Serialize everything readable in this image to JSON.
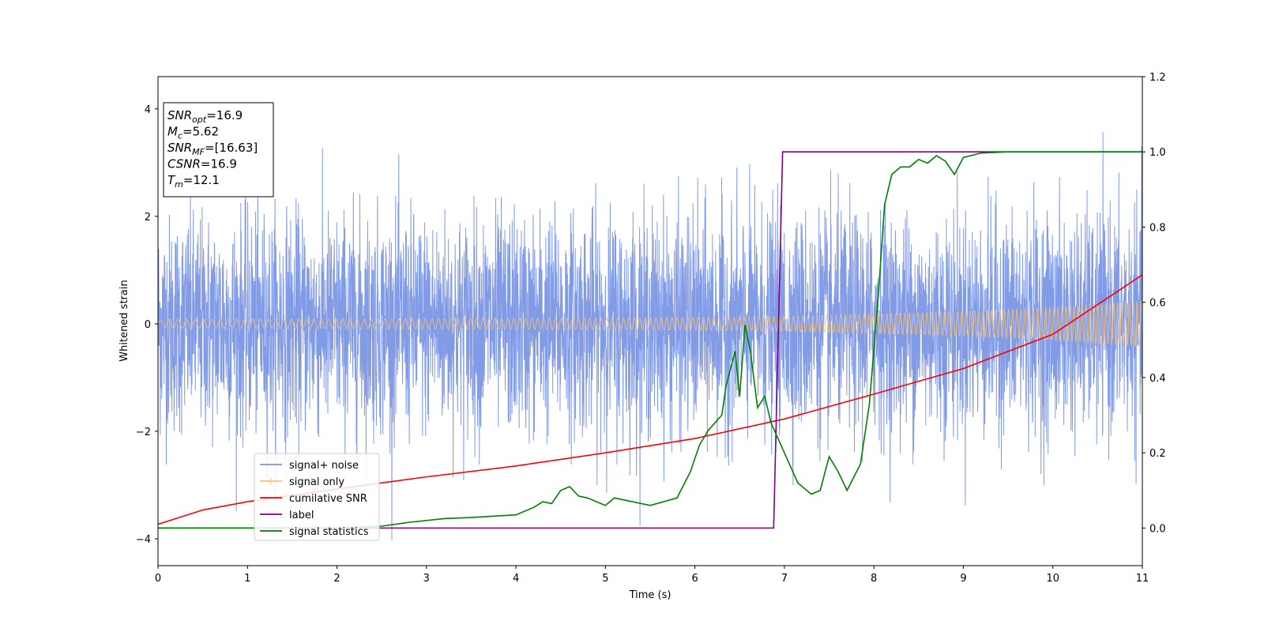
{
  "chart_data": {
    "type": "line",
    "xlabel": "Time (s)",
    "ylabel_left": "Whitened strain",
    "ylabel_right": "",
    "xlim": [
      0,
      11
    ],
    "ylim_left": [
      -4.5,
      4.6
    ],
    "ylim_right": [
      -0.1,
      1.2
    ],
    "xticks": [
      "0",
      "1",
      "2",
      "3",
      "4",
      "5",
      "6",
      "7",
      "8",
      "9",
      "10",
      "11"
    ],
    "yticks_left": [
      "−4",
      "−2",
      "0",
      "2",
      "4"
    ],
    "yticks_right": [
      "0.0",
      "0.2",
      "0.4",
      "0.6",
      "0.8",
      "1.0",
      "1.2"
    ],
    "grid": false,
    "legend_position": "lower-left",
    "info_box": {
      "lines": [
        {
          "main": "SNR",
          "sub": "opt",
          "rest": "=16.9"
        },
        {
          "main": "M",
          "sub": "c",
          "rest": "=5.62"
        },
        {
          "main": "SNR",
          "sub": "MF",
          "rest": "=[16.63]"
        },
        {
          "main": "CSNR",
          "sub": "",
          "rest": "=16.9"
        },
        {
          "main": "T",
          "sub": "m",
          "rest": "=12.1"
        }
      ]
    },
    "series": [
      {
        "name": "signal+ noise",
        "axis": "left",
        "color": "#7b96e6",
        "description": "whitened noisy strain, roughly within ±2.5 with spikes to ±4",
        "envelope": {
          "sigma": 1.0,
          "x_range": [
            0,
            11
          ]
        }
      },
      {
        "name": "signal only",
        "axis": "left",
        "color": "#f2c27a",
        "amplitude_points": [
          [
            0,
            0.08
          ],
          [
            2,
            0.09
          ],
          [
            4,
            0.1
          ],
          [
            6,
            0.12
          ],
          [
            7,
            0.14
          ],
          [
            8,
            0.18
          ],
          [
            9,
            0.23
          ],
          [
            10,
            0.3
          ],
          [
            11,
            0.42
          ]
        ]
      },
      {
        "name": "cumilative SNR",
        "axis": "right",
        "color": "#ff0000",
        "points": [
          [
            0,
            0.01
          ],
          [
            0.5,
            0.048
          ],
          [
            1,
            0.07
          ],
          [
            2,
            0.104
          ],
          [
            3,
            0.136
          ],
          [
            4,
            0.165
          ],
          [
            5,
            0.2
          ],
          [
            6,
            0.238
          ],
          [
            7,
            0.29
          ],
          [
            8,
            0.356
          ],
          [
            9,
            0.424
          ],
          [
            10,
            0.515
          ],
          [
            11,
            0.673
          ]
        ]
      },
      {
        "name": "label",
        "axis": "right",
        "color": "#800080",
        "points": [
          [
            0,
            0.0
          ],
          [
            6.88,
            0.0
          ],
          [
            6.98,
            1.0
          ],
          [
            11,
            1.0
          ]
        ]
      },
      {
        "name": "signal statistics",
        "axis": "right",
        "color": "#008000",
        "points": [
          [
            0,
            0.0
          ],
          [
            1,
            0.0
          ],
          [
            2,
            0.0
          ],
          [
            2.5,
            0.005
          ],
          [
            2.8,
            0.015
          ],
          [
            3.2,
            0.025
          ],
          [
            3.5,
            0.028
          ],
          [
            4.0,
            0.035
          ],
          [
            4.2,
            0.055
          ],
          [
            4.3,
            0.07
          ],
          [
            4.4,
            0.065
          ],
          [
            4.5,
            0.1
          ],
          [
            4.6,
            0.11
          ],
          [
            4.7,
            0.085
          ],
          [
            4.8,
            0.08
          ],
          [
            5.0,
            0.06
          ],
          [
            5.1,
            0.08
          ],
          [
            5.2,
            0.075
          ],
          [
            5.5,
            0.06
          ],
          [
            5.8,
            0.08
          ],
          [
            5.95,
            0.15
          ],
          [
            6.05,
            0.22
          ],
          [
            6.15,
            0.26
          ],
          [
            6.3,
            0.3
          ],
          [
            6.35,
            0.38
          ],
          [
            6.45,
            0.47
          ],
          [
            6.5,
            0.35
          ],
          [
            6.56,
            0.54
          ],
          [
            6.62,
            0.47
          ],
          [
            6.7,
            0.32
          ],
          [
            6.78,
            0.35
          ],
          [
            6.85,
            0.28
          ],
          [
            7.0,
            0.2
          ],
          [
            7.15,
            0.12
          ],
          [
            7.3,
            0.09
          ],
          [
            7.4,
            0.1
          ],
          [
            7.5,
            0.19
          ],
          [
            7.6,
            0.15
          ],
          [
            7.7,
            0.1
          ],
          [
            7.85,
            0.17
          ],
          [
            7.95,
            0.33
          ],
          [
            8.05,
            0.62
          ],
          [
            8.12,
            0.86
          ],
          [
            8.2,
            0.94
          ],
          [
            8.3,
            0.96
          ],
          [
            8.4,
            0.96
          ],
          [
            8.5,
            0.98
          ],
          [
            8.6,
            0.97
          ],
          [
            8.7,
            0.99
          ],
          [
            8.8,
            0.975
          ],
          [
            8.9,
            0.94
          ],
          [
            9.0,
            0.985
          ],
          [
            9.2,
            0.997
          ],
          [
            9.5,
            1.0
          ],
          [
            11,
            1.0
          ]
        ]
      }
    ]
  }
}
